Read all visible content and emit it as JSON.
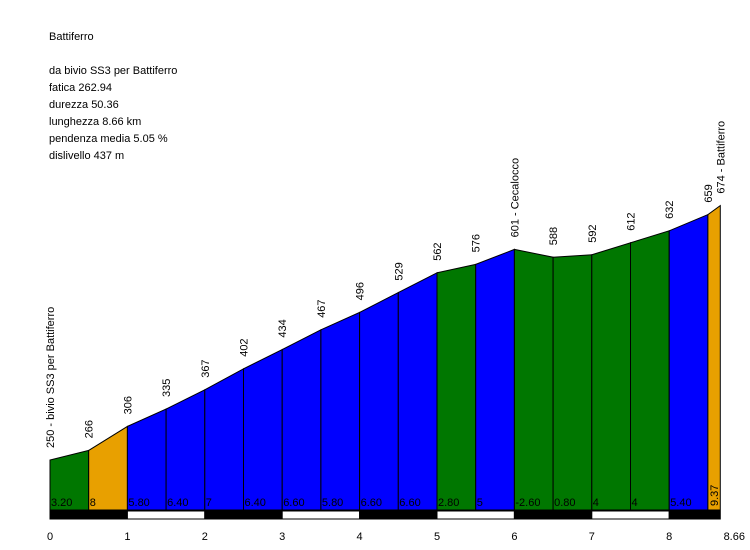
{
  "info": {
    "title": "Battiferro",
    "start": "da bivio SS3 per Battiferro",
    "fatica": "fatica 262.94",
    "durezza": "durezza 50.36",
    "lunghezza": "lunghezza 8.66 km",
    "pendenza": "pendenza media 5.05 %",
    "dislivello": "dislivello 437 m"
  },
  "colors": {
    "green": "#007700",
    "blue": "#0000ff",
    "orange": "#e8a000"
  },
  "chart_data": {
    "type": "area",
    "xlim": [
      0,
      8.66
    ],
    "x_ticks": [
      "0",
      "1",
      "2",
      "3",
      "4",
      "5",
      "6",
      "7",
      "8",
      "8.66"
    ],
    "points": [
      {
        "km": 0.0,
        "alt": 250,
        "label": "250 - bivio SS3 per Battiferro"
      },
      {
        "km": 0.5,
        "alt": 266,
        "label": "266"
      },
      {
        "km": 1.0,
        "alt": 306,
        "label": "306"
      },
      {
        "km": 1.5,
        "alt": 335,
        "label": "335"
      },
      {
        "km": 2.0,
        "alt": 367,
        "label": "367"
      },
      {
        "km": 2.5,
        "alt": 402,
        "label": "402"
      },
      {
        "km": 3.0,
        "alt": 434,
        "label": "434"
      },
      {
        "km": 3.5,
        "alt": 467,
        "label": "467"
      },
      {
        "km": 4.0,
        "alt": 496,
        "label": "496"
      },
      {
        "km": 4.5,
        "alt": 529,
        "label": "529"
      },
      {
        "km": 5.0,
        "alt": 562,
        "label": "562"
      },
      {
        "km": 5.5,
        "alt": 576,
        "label": "576"
      },
      {
        "km": 6.0,
        "alt": 601,
        "label": "601 - Cecalocco"
      },
      {
        "km": 6.5,
        "alt": 588,
        "label": "588"
      },
      {
        "km": 7.0,
        "alt": 592,
        "label": "592"
      },
      {
        "km": 7.5,
        "alt": 612,
        "label": "612"
      },
      {
        "km": 8.0,
        "alt": 632,
        "label": "632"
      },
      {
        "km": 8.5,
        "alt": 659,
        "label": "659"
      },
      {
        "km": 8.66,
        "alt": 674,
        "label": "674 - Battiferro"
      }
    ],
    "segments": [
      {
        "grade": "3.20",
        "color": "green"
      },
      {
        "grade": "8",
        "color": "orange"
      },
      {
        "grade": "5.80",
        "color": "blue"
      },
      {
        "grade": "6.40",
        "color": "blue"
      },
      {
        "grade": "7",
        "color": "blue"
      },
      {
        "grade": "6.40",
        "color": "blue"
      },
      {
        "grade": "6.60",
        "color": "blue"
      },
      {
        "grade": "5.80",
        "color": "blue"
      },
      {
        "grade": "6.60",
        "color": "blue"
      },
      {
        "grade": "6.60",
        "color": "blue"
      },
      {
        "grade": "2.80",
        "color": "green"
      },
      {
        "grade": "5",
        "color": "blue"
      },
      {
        "grade": "-2.60",
        "color": "green"
      },
      {
        "grade": "0.80",
        "color": "green"
      },
      {
        "grade": "4",
        "color": "green"
      },
      {
        "grade": "4",
        "color": "green"
      },
      {
        "grade": "5.40",
        "color": "blue"
      },
      {
        "grade": "9.37",
        "color": "orange",
        "vertical_label": true
      }
    ]
  }
}
